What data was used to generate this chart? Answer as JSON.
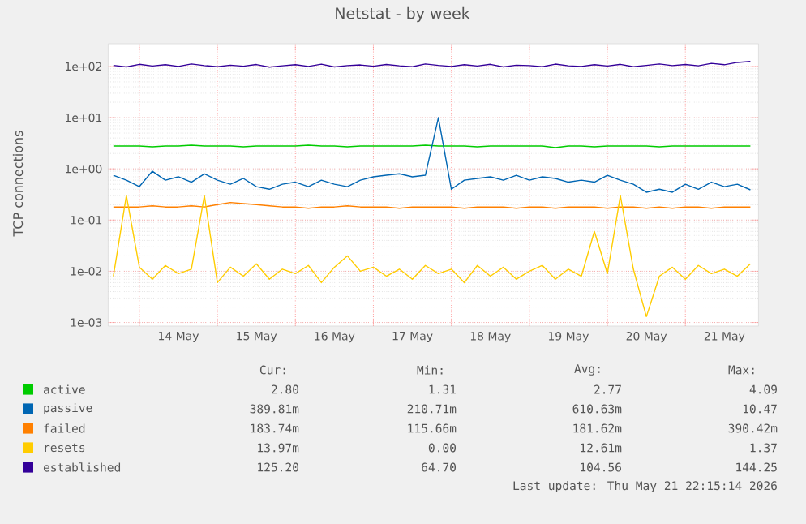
{
  "chart_data": {
    "type": "line",
    "title": "Netstat - by week",
    "ylabel": "TCP connections",
    "log": true,
    "grid": true,
    "legend": "bottom",
    "x": [
      "2026-05-13T16:00",
      "2026-05-13T20:00",
      "2026-05-14T00:00",
      "2026-05-14T04:00",
      "2026-05-14T08:00",
      "2026-05-14T12:00",
      "2026-05-14T16:00",
      "2026-05-14T20:00",
      "2026-05-15T00:00",
      "2026-05-15T04:00",
      "2026-05-15T08:00",
      "2026-05-15T12:00",
      "2026-05-15T16:00",
      "2026-05-15T20:00",
      "2026-05-16T00:00",
      "2026-05-16T04:00",
      "2026-05-16T08:00",
      "2026-05-16T12:00",
      "2026-05-16T16:00",
      "2026-05-16T20:00",
      "2026-05-17T00:00",
      "2026-05-17T04:00",
      "2026-05-17T08:00",
      "2026-05-17T12:00",
      "2026-05-17T16:00",
      "2026-05-17T20:00",
      "2026-05-18T00:00",
      "2026-05-18T04:00",
      "2026-05-18T08:00",
      "2026-05-18T12:00",
      "2026-05-18T16:00",
      "2026-05-18T20:00",
      "2026-05-19T00:00",
      "2026-05-19T04:00",
      "2026-05-19T08:00",
      "2026-05-19T12:00",
      "2026-05-19T16:00",
      "2026-05-19T20:00",
      "2026-05-20T00:00",
      "2026-05-20T04:00",
      "2026-05-20T08:00",
      "2026-05-20T12:00",
      "2026-05-20T16:00",
      "2026-05-20T20:00",
      "2026-05-21T00:00",
      "2026-05-21T04:00",
      "2026-05-21T08:00",
      "2026-05-21T12:00",
      "2026-05-21T16:00",
      "2026-05-21T20:00"
    ],
    "xlim": [
      "2026-05-13T14:24",
      "2026-05-21T22:30"
    ],
    "xticks": [
      {
        "value": "2026-05-14T00:00",
        "label": null
      },
      {
        "value": "2026-05-14T12:00",
        "label": "14 May"
      },
      {
        "value": "2026-05-15T00:00",
        "label": null
      },
      {
        "value": "2026-05-15T12:00",
        "label": "15 May"
      },
      {
        "value": "2026-05-16T00:00",
        "label": null
      },
      {
        "value": "2026-05-16T12:00",
        "label": "16 May"
      },
      {
        "value": "2026-05-17T00:00",
        "label": null
      },
      {
        "value": "2026-05-17T12:00",
        "label": "17 May"
      },
      {
        "value": "2026-05-18T00:00",
        "label": null
      },
      {
        "value": "2026-05-18T12:00",
        "label": "18 May"
      },
      {
        "value": "2026-05-19T00:00",
        "label": null
      },
      {
        "value": "2026-05-19T12:00",
        "label": "19 May"
      },
      {
        "value": "2026-05-20T00:00",
        "label": null
      },
      {
        "value": "2026-05-20T12:00",
        "label": "20 May"
      },
      {
        "value": "2026-05-21T00:00",
        "label": null
      },
      {
        "value": "2026-05-21T12:00",
        "label": "21 May"
      }
    ],
    "ylim": [
      0.00085,
      277
    ],
    "yticks": [
      {
        "value": 0.001,
        "label": "1e-03"
      },
      {
        "value": 0.01,
        "label": "1e-02"
      },
      {
        "value": 0.1,
        "label": "1e-01"
      },
      {
        "value": 1,
        "label": "1e+00"
      },
      {
        "value": 10,
        "label": "1e+01"
      },
      {
        "value": 100,
        "label": "1e+02"
      }
    ],
    "series": [
      {
        "name": "active",
        "color": "#00cc00",
        "values": [
          2.8,
          2.8,
          2.8,
          2.7,
          2.8,
          2.8,
          2.9,
          2.8,
          2.8,
          2.8,
          2.7,
          2.8,
          2.8,
          2.8,
          2.8,
          2.9,
          2.8,
          2.8,
          2.7,
          2.8,
          2.8,
          2.8,
          2.8,
          2.8,
          2.9,
          2.8,
          2.8,
          2.8,
          2.7,
          2.8,
          2.8,
          2.8,
          2.8,
          2.8,
          2.6,
          2.8,
          2.8,
          2.7,
          2.8,
          2.8,
          2.8,
          2.8,
          2.7,
          2.8,
          2.8,
          2.8,
          2.8,
          2.8,
          2.8,
          2.8
        ]
      },
      {
        "name": "passive",
        "color": "#0066b3",
        "values": [
          0.75,
          0.6,
          0.45,
          0.9,
          0.6,
          0.7,
          0.55,
          0.8,
          0.6,
          0.5,
          0.65,
          0.45,
          0.4,
          0.5,
          0.55,
          0.45,
          0.6,
          0.5,
          0.45,
          0.6,
          0.7,
          0.75,
          0.8,
          0.7,
          0.75,
          10,
          0.4,
          0.6,
          0.65,
          0.7,
          0.6,
          0.75,
          0.6,
          0.7,
          0.65,
          0.55,
          0.6,
          0.55,
          0.75,
          0.6,
          0.5,
          0.35,
          0.4,
          0.35,
          0.5,
          0.4,
          0.55,
          0.45,
          0.5,
          0.39
        ]
      },
      {
        "name": "failed",
        "color": "#ff8000",
        "values": [
          0.18,
          0.18,
          0.18,
          0.19,
          0.18,
          0.18,
          0.19,
          0.18,
          0.2,
          0.22,
          0.21,
          0.2,
          0.19,
          0.18,
          0.18,
          0.17,
          0.18,
          0.18,
          0.19,
          0.18,
          0.18,
          0.18,
          0.17,
          0.18,
          0.18,
          0.18,
          0.18,
          0.17,
          0.18,
          0.18,
          0.18,
          0.17,
          0.18,
          0.18,
          0.17,
          0.18,
          0.18,
          0.18,
          0.17,
          0.18,
          0.18,
          0.17,
          0.18,
          0.17,
          0.18,
          0.18,
          0.17,
          0.18,
          0.18,
          0.18
        ]
      },
      {
        "name": "resets",
        "color": "#ffcc00",
        "values": [
          0.008,
          0.3,
          0.012,
          0.007,
          0.013,
          0.009,
          0.011,
          0.3,
          0.006,
          0.012,
          0.008,
          0.014,
          0.007,
          0.011,
          0.009,
          0.013,
          0.006,
          0.012,
          0.02,
          0.01,
          0.012,
          0.008,
          0.011,
          0.007,
          0.013,
          0.009,
          0.011,
          0.006,
          0.013,
          0.008,
          0.012,
          0.007,
          0.01,
          0.013,
          0.007,
          0.011,
          0.008,
          0.06,
          0.009,
          0.3,
          0.011,
          0.0013,
          0.008,
          0.012,
          0.007,
          0.013,
          0.009,
          0.011,
          0.008,
          0.014
        ]
      },
      {
        "name": "established",
        "color": "#330099",
        "values": [
          105,
          98,
          110,
          102,
          108,
          100,
          112,
          104,
          99,
          106,
          101,
          109,
          97,
          103,
          108,
          100,
          111,
          98,
          104,
          107,
          101,
          109,
          103,
          99,
          112,
          105,
          100,
          108,
          102,
          110,
          98,
          106,
          104,
          99,
          111,
          103,
          100,
          108,
          102,
          110,
          99,
          105,
          112,
          104,
          109,
          103,
          115,
          108,
          120,
          125
        ]
      }
    ],
    "annotations": [
      "Cur:",
      "Min:",
      "Avg:",
      "Max:",
      "2.80",
      "1.31",
      "2.77",
      "4.09",
      "389.81m",
      "210.71m",
      "610.63m",
      "10.47",
      "183.74m",
      "115.66m",
      "181.62m",
      "390.42m",
      "13.97m",
      "0.00",
      "12.61m",
      "1.37",
      "125.20",
      "64.70",
      "104.56",
      "144.25",
      "Last update: Thu May 21 22:15:14 2026"
    ]
  }
}
